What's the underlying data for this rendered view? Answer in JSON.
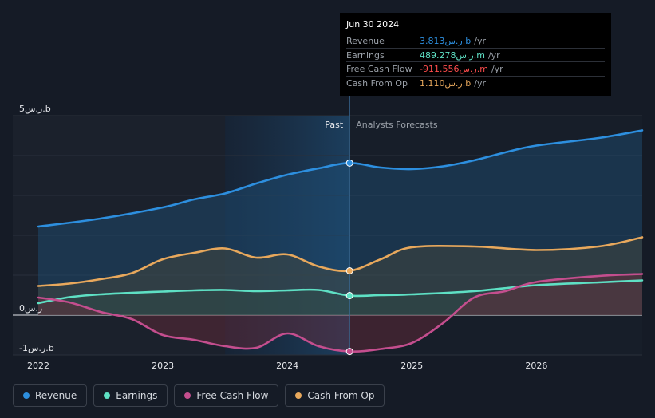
{
  "chart_data": {
    "type": "line",
    "title": "",
    "xlabel": "",
    "ylabel": "",
    "ylim": [
      -1,
      5
    ],
    "xlim": [
      2022.0,
      2026.85
    ],
    "y_ticks": [
      {
        "value": 5,
        "label": "5ر.س.b"
      },
      {
        "value": 0,
        "label": "0ر.س"
      },
      {
        "value": -1,
        "label": "-1ر.س.b"
      }
    ],
    "x_ticks": [
      {
        "value": 2022,
        "label": "2022"
      },
      {
        "value": 2023,
        "label": "2023"
      },
      {
        "value": 2024,
        "label": "2024"
      },
      {
        "value": 2025,
        "label": "2025"
      },
      {
        "value": 2026,
        "label": "2026"
      }
    ],
    "past_label": "Past",
    "forecast_label": "Analysts Forecasts",
    "divider_x": 2024.5,
    "highlight_start_x": 2023.5,
    "series": [
      {
        "name": "Revenue",
        "color": "#2d8fdf",
        "points": [
          [
            2022.0,
            2.22
          ],
          [
            2022.5,
            2.42
          ],
          [
            2023.0,
            2.7
          ],
          [
            2023.25,
            2.9
          ],
          [
            2023.5,
            3.05
          ],
          [
            2023.75,
            3.3
          ],
          [
            2024.0,
            3.52
          ],
          [
            2024.25,
            3.68
          ],
          [
            2024.5,
            3.813
          ],
          [
            2024.75,
            3.7
          ],
          [
            2025.0,
            3.66
          ],
          [
            2025.25,
            3.73
          ],
          [
            2025.5,
            3.88
          ],
          [
            2025.75,
            4.08
          ],
          [
            2026.0,
            4.25
          ],
          [
            2026.5,
            4.44
          ],
          [
            2026.85,
            4.63
          ]
        ]
      },
      {
        "name": "Earnings",
        "color": "#5ee0c4",
        "points": [
          [
            2022.0,
            0.3
          ],
          [
            2022.25,
            0.45
          ],
          [
            2022.5,
            0.52
          ],
          [
            2022.75,
            0.56
          ],
          [
            2023.0,
            0.59
          ],
          [
            2023.25,
            0.62
          ],
          [
            2023.5,
            0.63
          ],
          [
            2023.75,
            0.6
          ],
          [
            2024.0,
            0.62
          ],
          [
            2024.25,
            0.63
          ],
          [
            2024.5,
            0.489
          ],
          [
            2024.75,
            0.5
          ],
          [
            2025.0,
            0.52
          ],
          [
            2025.5,
            0.6
          ],
          [
            2026.0,
            0.75
          ],
          [
            2026.5,
            0.82
          ],
          [
            2026.85,
            0.87
          ]
        ]
      },
      {
        "name": "Free Cash Flow",
        "color": "#c44e8e",
        "points": [
          [
            2022.0,
            0.44
          ],
          [
            2022.25,
            0.32
          ],
          [
            2022.5,
            0.08
          ],
          [
            2022.75,
            -0.1
          ],
          [
            2023.0,
            -0.5
          ],
          [
            2023.25,
            -0.62
          ],
          [
            2023.5,
            -0.78
          ],
          [
            2023.75,
            -0.82
          ],
          [
            2024.0,
            -0.46
          ],
          [
            2024.25,
            -0.78
          ],
          [
            2024.5,
            -0.912
          ],
          [
            2024.75,
            -0.85
          ],
          [
            2025.0,
            -0.7
          ],
          [
            2025.25,
            -0.2
          ],
          [
            2025.5,
            0.44
          ],
          [
            2025.75,
            0.6
          ],
          [
            2026.0,
            0.83
          ],
          [
            2026.5,
            0.98
          ],
          [
            2026.85,
            1.03
          ]
        ]
      },
      {
        "name": "Cash From Op",
        "color": "#e8a85c",
        "points": [
          [
            2022.0,
            0.73
          ],
          [
            2022.25,
            0.79
          ],
          [
            2022.5,
            0.9
          ],
          [
            2022.75,
            1.05
          ],
          [
            2023.0,
            1.4
          ],
          [
            2023.25,
            1.56
          ],
          [
            2023.5,
            1.67
          ],
          [
            2023.75,
            1.44
          ],
          [
            2024.0,
            1.52
          ],
          [
            2024.25,
            1.22
          ],
          [
            2024.5,
            1.11
          ],
          [
            2024.75,
            1.4
          ],
          [
            2025.0,
            1.7
          ],
          [
            2025.5,
            1.72
          ],
          [
            2026.0,
            1.63
          ],
          [
            2026.5,
            1.72
          ],
          [
            2026.85,
            1.95
          ]
        ]
      }
    ],
    "legend": [
      "Revenue",
      "Earnings",
      "Free Cash Flow",
      "Cash From Op"
    ],
    "legend_position": "bottom-left"
  },
  "tooltip": {
    "date": "Jun 30 2024",
    "rows": [
      {
        "label": "Revenue",
        "value": "3.813ر.س.b",
        "unit": "/yr",
        "color": "#2d8fdf"
      },
      {
        "label": "Earnings",
        "value": "489.278ر.س.m",
        "unit": "/yr",
        "color": "#5ee0c4"
      },
      {
        "label": "Free Cash Flow",
        "value": "-911.556ر.س.m",
        "unit": "/yr",
        "color": "#ff4d4d"
      },
      {
        "label": "Cash From Op",
        "value": "1.110ر.س.b",
        "unit": "/yr",
        "color": "#e8a85c"
      }
    ]
  },
  "legend_items": [
    {
      "label": "Revenue",
      "color": "#2d8fdf"
    },
    {
      "label": "Earnings",
      "color": "#5ee0c4"
    },
    {
      "label": "Free Cash Flow",
      "color": "#c44e8e"
    },
    {
      "label": "Cash From Op",
      "color": "#e8a85c"
    }
  ]
}
